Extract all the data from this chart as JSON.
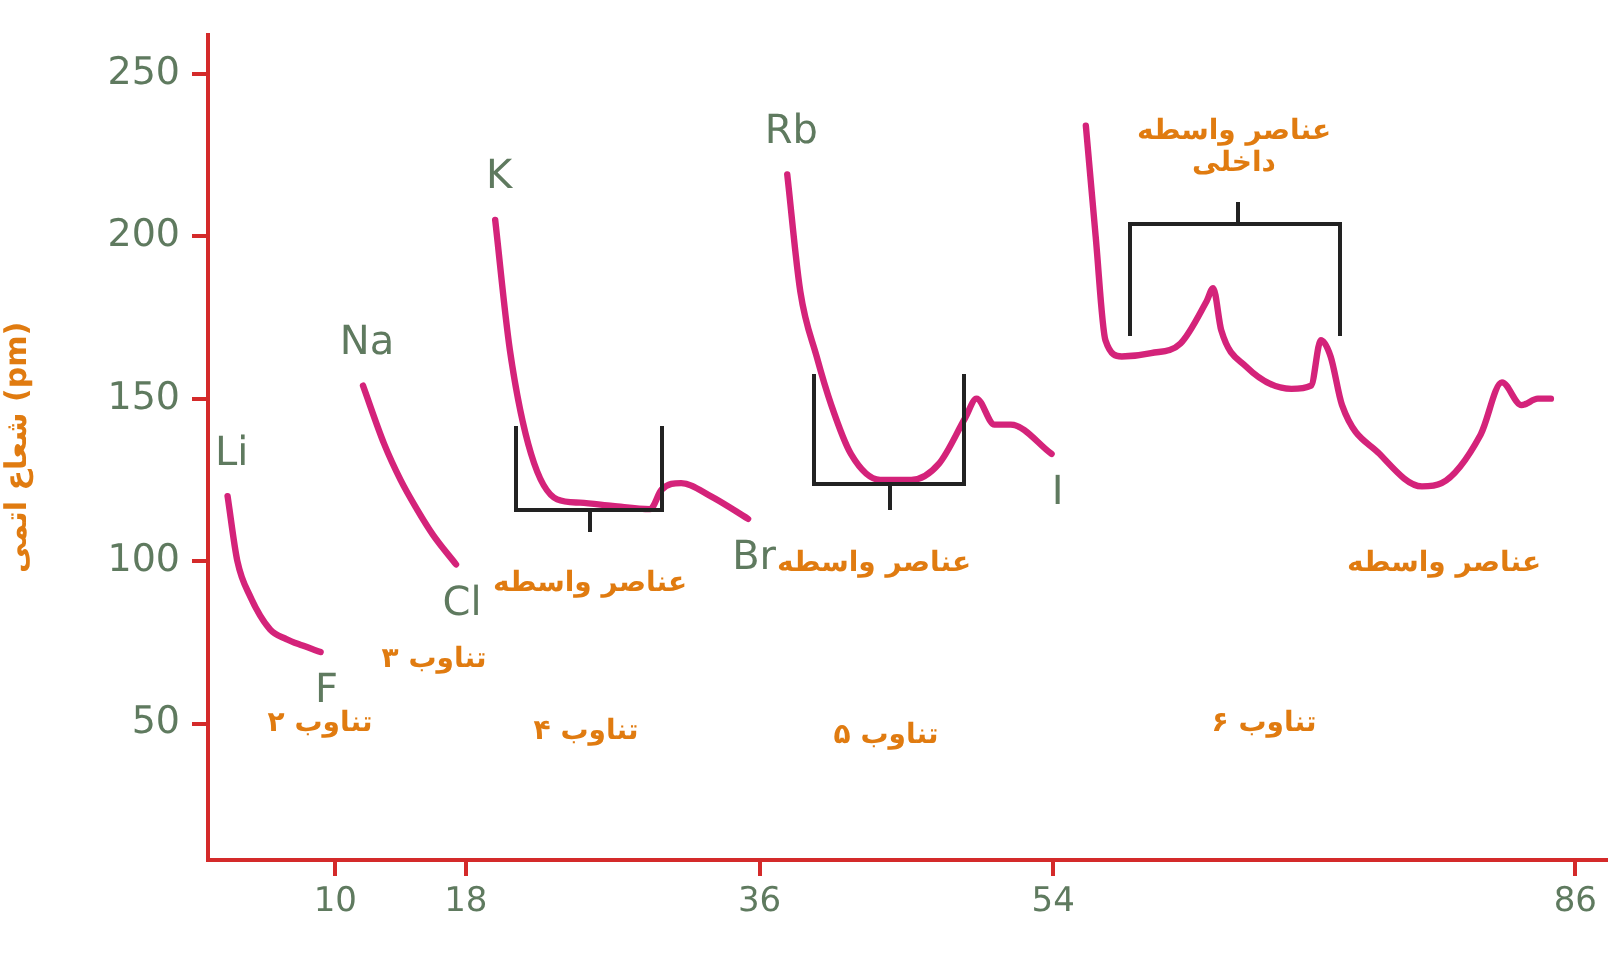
{
  "chart_data": {
    "type": "line",
    "ylabel": "شعاع اتمی (pm)",
    "xlim": [
      2.2,
      88
    ],
    "xticks": [
      10,
      18,
      36,
      54,
      86
    ],
    "ylim": [
      8,
      262
    ],
    "yticks": [
      50,
      100,
      150,
      200,
      250
    ],
    "grid": false,
    "legend": false,
    "series": [
      {
        "color": "#d4237a",
        "x": [
          3.4,
          4,
          4.8,
          6,
          7,
          8,
          9.1
        ],
        "values": [
          120,
          100,
          89,
          79,
          76,
          74,
          72
        ]
      },
      {
        "color": "#d4237a",
        "x": [
          11.7,
          13,
          14,
          15,
          16,
          17.4
        ],
        "values": [
          154,
          136,
          125,
          116,
          108,
          99
        ]
      },
      {
        "color": "#d4237a",
        "x": [
          19.8,
          20.7,
          22,
          23.6,
          25,
          27,
          29.3,
          30,
          31.2,
          33,
          35.3
        ],
        "values": [
          205,
          165,
          133,
          119,
          118,
          117,
          116,
          122,
          124,
          120,
          113
        ]
      },
      {
        "color": "#d4237a",
        "x": [
          37.7,
          38.5,
          39.5,
          40.4,
          41.6,
          43.4,
          45.3,
          47,
          48.6,
          49.3,
          50.4,
          51.4,
          53.9
        ],
        "values": [
          219,
          183,
          163,
          148,
          133,
          125,
          125,
          130,
          144,
          150,
          142,
          142,
          133
        ]
      },
      {
        "color": "#d4237a",
        "x": [
          56,
          56.6,
          57.2,
          58.2,
          60,
          61.8,
          63.4,
          63.8,
          64.3,
          65.8,
          68.6,
          69.8,
          70.4,
          71,
          71.7,
          74,
          76.6,
          77.8,
          80.2,
          81.5,
          82.7,
          83.7,
          84.5
        ],
        "values": [
          234,
          200,
          168,
          163,
          164,
          167,
          180,
          184,
          171,
          160,
          153,
          154,
          168,
          163,
          148,
          133,
          123,
          124,
          139,
          155,
          148,
          150,
          150
        ]
      }
    ],
    "annotations": [
      {
        "text": "Li",
        "x": 3.4,
        "y": 120
      },
      {
        "text": "Na",
        "x": 11.7,
        "y": 154
      },
      {
        "text": "K",
        "x": 19.8,
        "y": 205
      },
      {
        "text": "Rb",
        "x": 37.7,
        "y": 219
      },
      {
        "text": "F",
        "x": 9.1,
        "y": 72
      },
      {
        "text": "Cl",
        "x": 17.4,
        "y": 99
      },
      {
        "text": "Br",
        "x": 35.3,
        "y": 113
      },
      {
        "text": "I",
        "x": 53.9,
        "y": 133
      },
      "تناوب ۲",
      "تناوب ۳",
      "تناوب ۴",
      "تناوب ۵",
      "تناوب ۶",
      "عناصر واسطه",
      "عناصر واسطه",
      "عناصر واسطه",
      "عناصر واسطه\nداخلی"
    ]
  }
}
